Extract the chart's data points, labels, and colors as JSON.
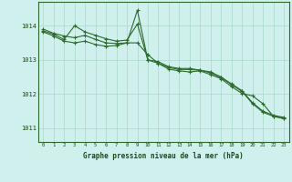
{
  "title": "Graphe pression niveau de la mer (hPa)",
  "bg_color": "#cff0ec",
  "grid_color": "#aad9cc",
  "line_color": "#2d6a2d",
  "xlim": [
    -0.5,
    23.5
  ],
  "ylim": [
    1010.6,
    1014.7
  ],
  "yticks": [
    1011,
    1012,
    1013,
    1014
  ],
  "xticks": [
    0,
    1,
    2,
    3,
    4,
    5,
    6,
    7,
    8,
    9,
    10,
    11,
    12,
    13,
    14,
    15,
    16,
    17,
    18,
    19,
    20,
    21,
    22,
    23
  ],
  "series1": {
    "x": [
      0,
      1,
      2,
      3,
      4,
      5,
      6,
      7,
      8,
      9,
      10,
      11,
      12,
      13,
      14,
      15,
      16,
      17,
      18,
      19,
      20,
      21,
      22,
      23
    ],
    "y": [
      1013.85,
      1013.75,
      1013.6,
      1014.0,
      1013.82,
      1013.72,
      1013.62,
      1013.55,
      1013.58,
      1014.05,
      1013.0,
      1012.95,
      1012.8,
      1012.75,
      1012.75,
      1012.7,
      1012.65,
      1012.5,
      1012.3,
      1012.1,
      1011.75,
      1011.5,
      1011.38,
      1011.32
    ]
  },
  "series2": {
    "x": [
      0,
      1,
      2,
      3,
      4,
      5,
      6,
      7,
      8,
      9,
      10,
      11,
      12,
      13,
      14,
      15,
      16,
      17,
      18,
      19,
      20,
      21,
      22,
      23
    ],
    "y": [
      1013.9,
      1013.78,
      1013.7,
      1013.65,
      1013.72,
      1013.6,
      1013.5,
      1013.48,
      1013.5,
      1014.45,
      1013.0,
      1012.9,
      1012.78,
      1012.72,
      1012.72,
      1012.7,
      1012.62,
      1012.48,
      1012.28,
      1012.08,
      1011.72,
      1011.47,
      1011.35,
      1011.3
    ]
  },
  "series3": {
    "x": [
      0,
      1,
      2,
      3,
      4,
      5,
      6,
      7,
      8,
      9,
      10,
      11,
      12,
      13,
      14,
      15,
      16,
      17,
      18,
      19,
      20,
      21,
      22,
      23
    ],
    "y": [
      1013.82,
      1013.7,
      1013.55,
      1013.5,
      1013.55,
      1013.45,
      1013.4,
      1013.42,
      1013.5,
      1013.5,
      1013.15,
      1012.9,
      1012.73,
      1012.68,
      1012.65,
      1012.68,
      1012.57,
      1012.45,
      1012.22,
      1012.02,
      1011.95,
      1011.72,
      1011.35,
      1011.28
    ]
  }
}
